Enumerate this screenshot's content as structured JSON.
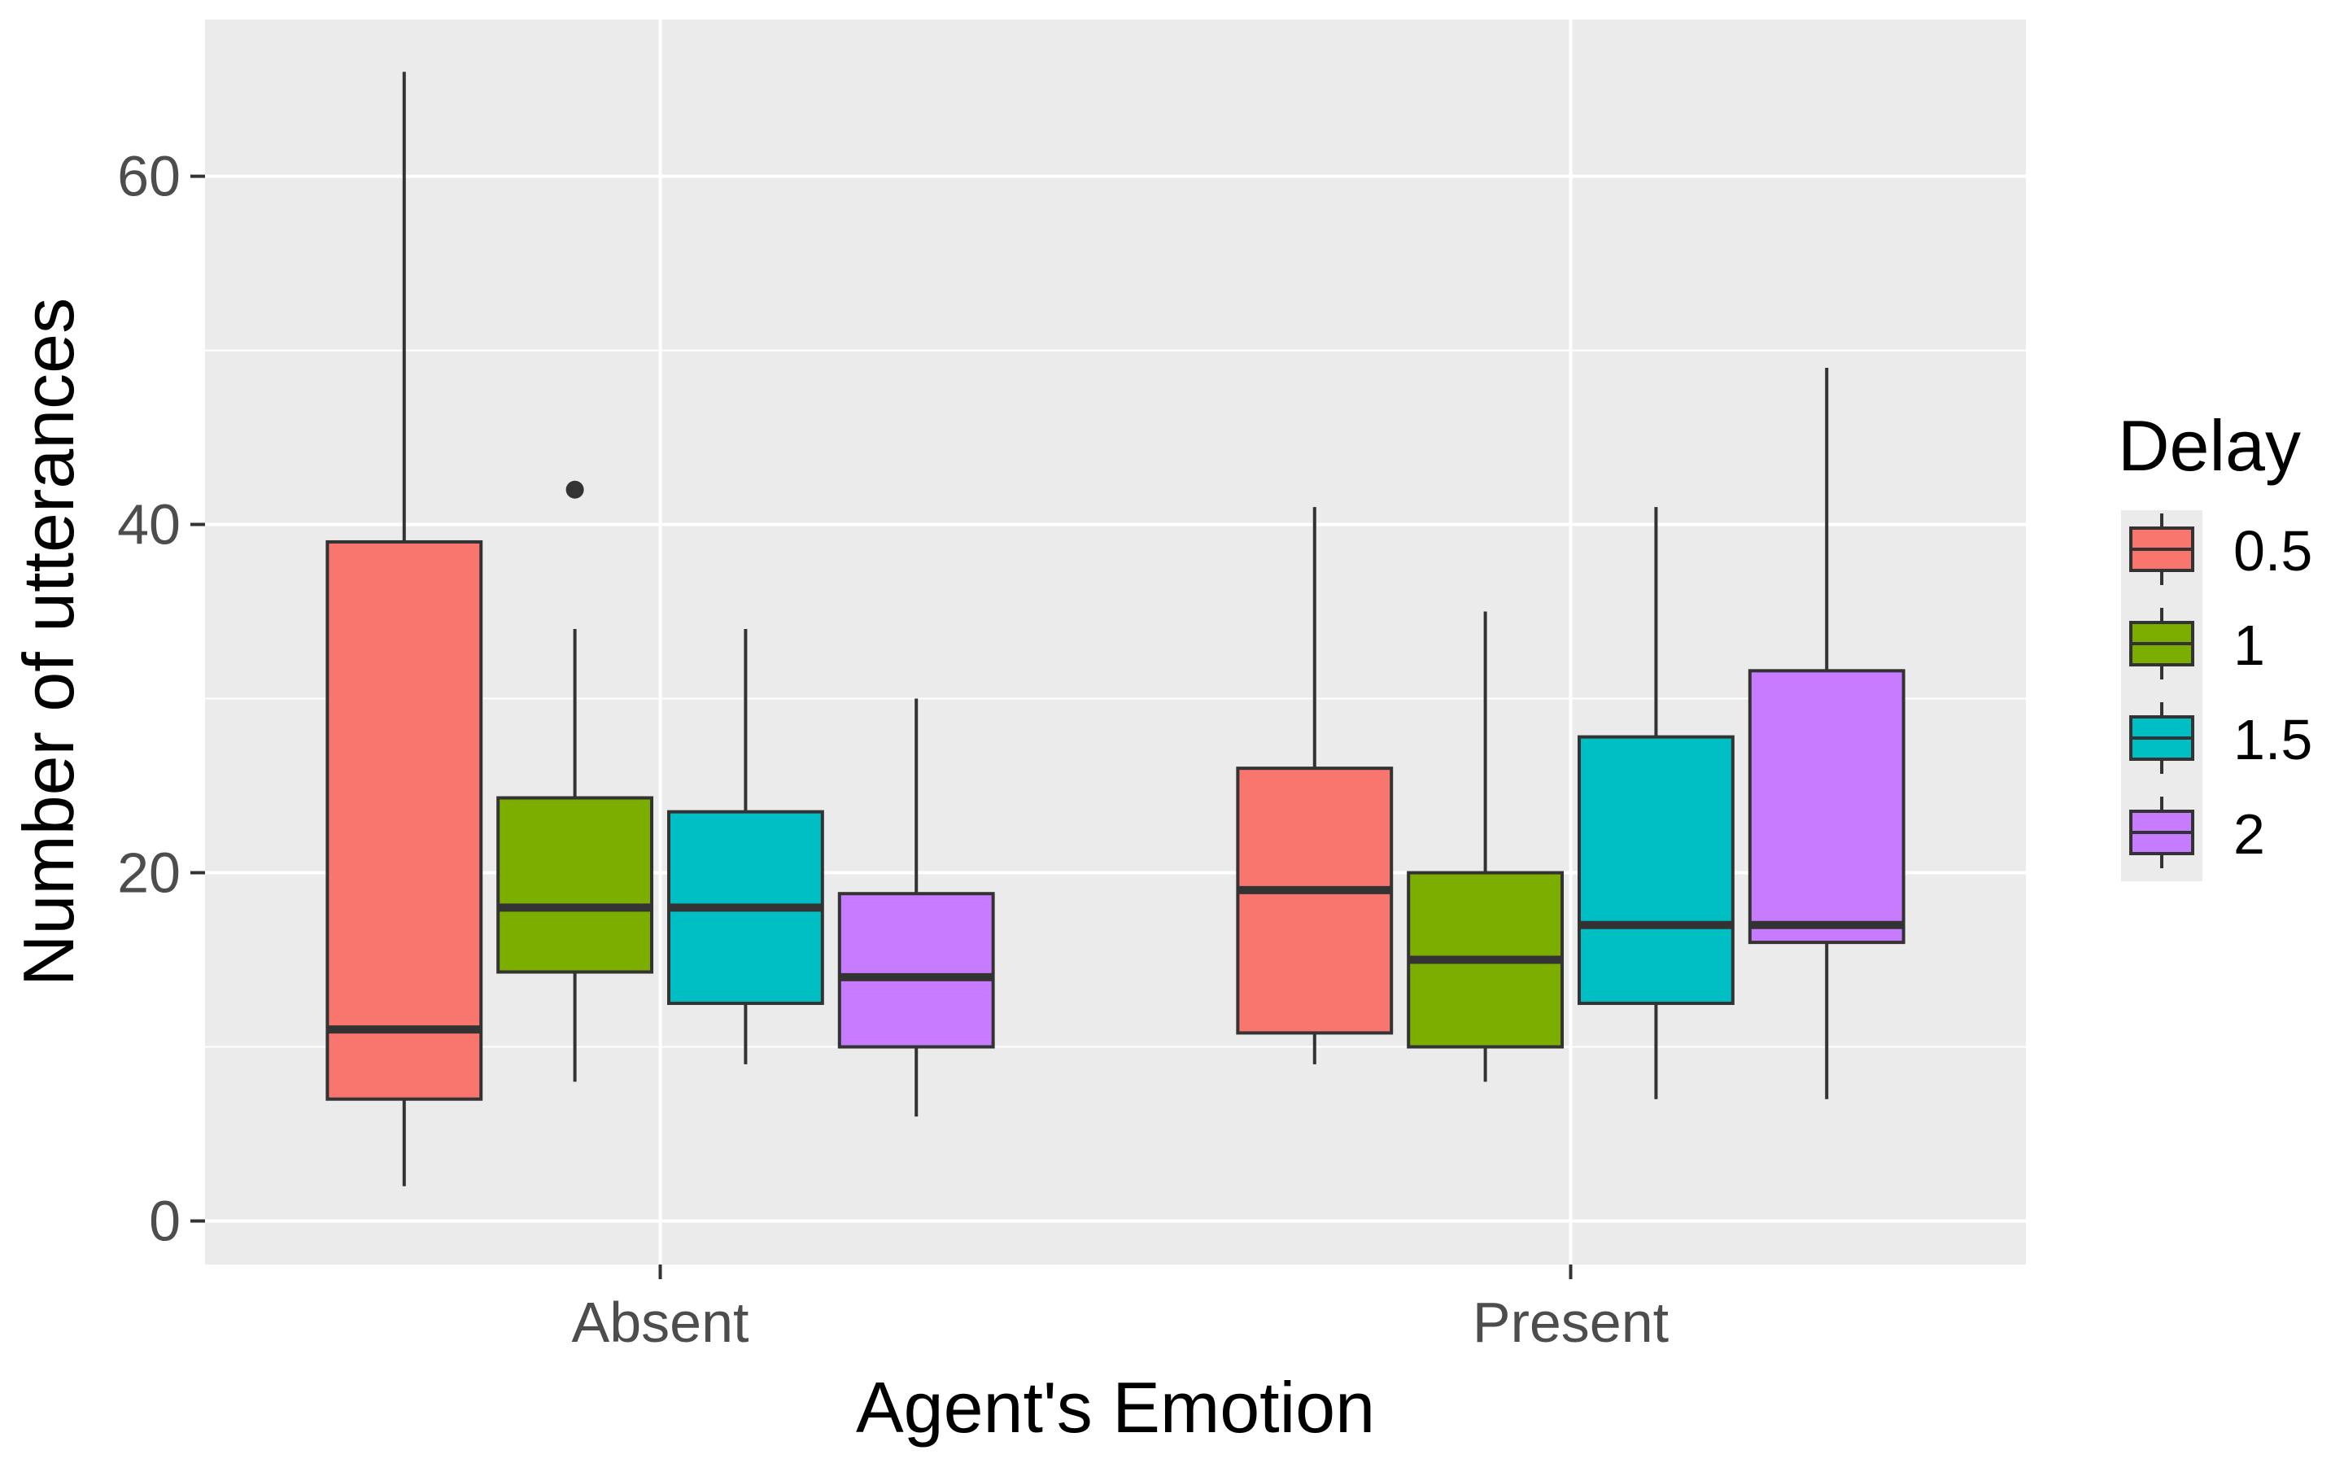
{
  "chart_data": {
    "type": "boxplot",
    "xlabel": "Agent's Emotion",
    "ylabel": "Number of utterances",
    "categories": [
      "Absent",
      "Present"
    ],
    "ylim": [
      -2.5,
      69
    ],
    "yticks": [
      0,
      20,
      40,
      60
    ],
    "legend": {
      "title": "Delay",
      "placement": "right",
      "entries": [
        {
          "label": "0.5",
          "color": "#F8766D"
        },
        {
          "label": "1",
          "color": "#7CAE00"
        },
        {
          "label": "1.5",
          "color": "#00BFC4"
        },
        {
          "label": "2",
          "color": "#C77CFF"
        }
      ]
    },
    "series": [
      {
        "name": "0.5",
        "color": "#F8766D",
        "boxes": [
          {
            "category": "Absent",
            "min": 2,
            "q1": 7,
            "median": 11,
            "q3": 39,
            "max": 66,
            "outliers": []
          },
          {
            "category": "Present",
            "min": 9,
            "q1": 10.8,
            "median": 19,
            "q3": 26,
            "max": 41,
            "outliers": []
          }
        ]
      },
      {
        "name": "1",
        "color": "#7CAE00",
        "boxes": [
          {
            "category": "Absent",
            "min": 8,
            "q1": 14.3,
            "median": 18,
            "q3": 24.3,
            "max": 34,
            "outliers": [
              42
            ]
          },
          {
            "category": "Present",
            "min": 8,
            "q1": 10,
            "median": 15,
            "q3": 20,
            "max": 35,
            "outliers": []
          }
        ]
      },
      {
        "name": "1.5",
        "color": "#00BFC4",
        "boxes": [
          {
            "category": "Absent",
            "min": 9,
            "q1": 12.5,
            "median": 18,
            "q3": 23.5,
            "max": 34,
            "outliers": []
          },
          {
            "category": "Present",
            "min": 7,
            "q1": 12.5,
            "median": 17,
            "q3": 27.8,
            "max": 41,
            "outliers": []
          }
        ]
      },
      {
        "name": "2",
        "color": "#C77CFF",
        "boxes": [
          {
            "category": "Absent",
            "min": 6,
            "q1": 10,
            "median": 14,
            "q3": 18.8,
            "max": 30,
            "outliers": []
          },
          {
            "category": "Present",
            "min": 7,
            "q1": 16,
            "median": 17,
            "q3": 31.6,
            "max": 49,
            "outliers": []
          }
        ]
      }
    ]
  }
}
